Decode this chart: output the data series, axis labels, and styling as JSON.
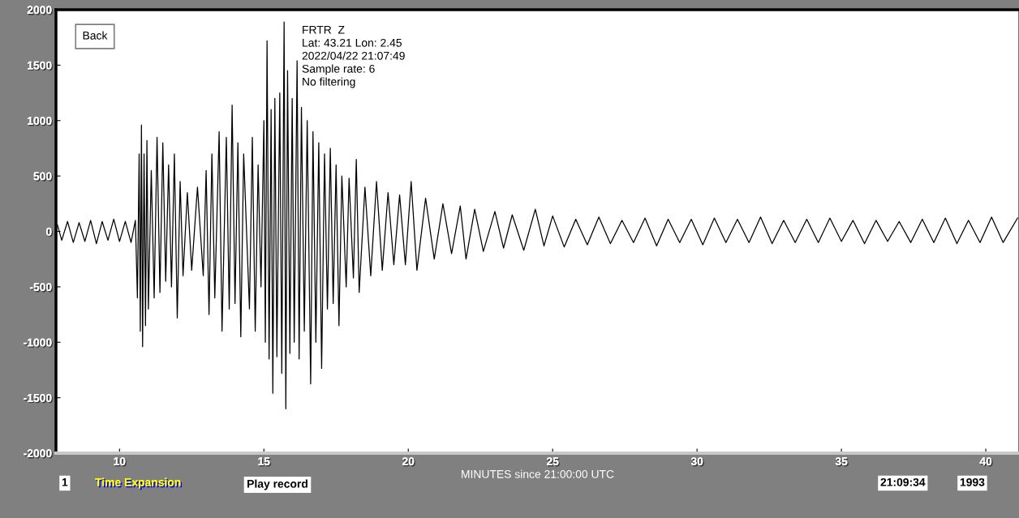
{
  "chart_data": {
    "type": "line",
    "xlabel": "MINUTES since 21:00:00 UTC",
    "annotations": [
      "FRTR  Z",
      "Lat: 43.21 Lon: 2.45",
      "2022/04/22 21:07:49",
      "Sample rate: 6",
      "No filtering",
      "Back",
      "1",
      "Time Expansion",
      "Play record",
      "21:09:34",
      "1993"
    ],
    "xlim": [
      7.8,
      41.15
    ],
    "ylim": [
      -2000,
      2000
    ],
    "xticks": [
      10,
      15,
      20,
      25,
      30,
      35,
      40
    ],
    "yticks": [
      -2000,
      -1500,
      -1000,
      -500,
      0,
      500,
      1000,
      1500,
      2000
    ],
    "grid": false,
    "marker": "none",
    "line_style": "solid",
    "series": [
      {
        "color": "#000000",
        "x": [
          7.85,
          8.0,
          8.2,
          8.4,
          8.6,
          8.8,
          9.0,
          9.2,
          9.4,
          9.6,
          9.8,
          10.0,
          10.2,
          10.4,
          10.55,
          10.62,
          10.68,
          10.72,
          10.76,
          10.8,
          10.85,
          10.9,
          10.95,
          11.0,
          11.1,
          11.2,
          11.3,
          11.4,
          11.5,
          11.6,
          11.7,
          11.8,
          11.9,
          12.0,
          12.1,
          12.2,
          12.35,
          12.5,
          12.7,
          12.9,
          13.0,
          13.1,
          13.2,
          13.3,
          13.45,
          13.55,
          13.7,
          13.8,
          13.9,
          14.0,
          14.1,
          14.2,
          14.3,
          14.5,
          14.6,
          14.7,
          14.8,
          14.9,
          15.0,
          15.05,
          15.11,
          15.18,
          15.25,
          15.31,
          15.38,
          15.45,
          15.55,
          15.62,
          15.7,
          15.76,
          15.82,
          15.9,
          15.98,
          16.05,
          16.15,
          16.22,
          16.3,
          16.4,
          16.5,
          16.62,
          16.7,
          16.8,
          16.9,
          17.0,
          17.1,
          17.2,
          17.3,
          17.4,
          17.5,
          17.6,
          17.7,
          17.85,
          17.95,
          18.1,
          18.2,
          18.3,
          18.5,
          18.7,
          18.9,
          19.1,
          19.3,
          19.5,
          19.7,
          19.9,
          20.1,
          20.3,
          20.6,
          20.9,
          21.2,
          21.5,
          21.8,
          22.0,
          22.3,
          22.6,
          23.0,
          23.3,
          23.6,
          24.0,
          24.4,
          24.7,
          25.0,
          25.4,
          25.8,
          26.2,
          26.6,
          27.0,
          27.4,
          27.8,
          28.2,
          28.6,
          29.0,
          29.4,
          29.8,
          30.2,
          30.6,
          31.0,
          31.4,
          31.8,
          32.2,
          32.6,
          33.0,
          33.4,
          33.8,
          34.2,
          34.6,
          35.0,
          35.4,
          35.8,
          36.2,
          36.6,
          37.0,
          37.4,
          37.8,
          38.2,
          38.6,
          39.0,
          39.4,
          39.8,
          40.2,
          40.6,
          41.1
        ],
        "values": [
          60,
          -80,
          90,
          -100,
          80,
          -90,
          100,
          -110,
          90,
          -80,
          110,
          -90,
          90,
          -100,
          100,
          -600,
          700,
          -900,
          960,
          -1040,
          700,
          -850,
          820,
          -700,
          550,
          -600,
          850,
          -550,
          800,
          -450,
          600,
          -500,
          700,
          -780,
          450,
          -400,
          350,
          -350,
          400,
          -400,
          550,
          -750,
          700,
          -600,
          900,
          -900,
          850,
          -700,
          1140,
          -650,
          800,
          -950,
          700,
          -700,
          850,
          -900,
          600,
          -500,
          1000,
          -1000,
          1720,
          -1150,
          1100,
          -1460,
          1200,
          -1130,
          1250,
          -1280,
          1890,
          -1600,
          1450,
          -1100,
          1200,
          -1000,
          1540,
          -1150,
          1120,
          -900,
          1000,
          -1375,
          900,
          -1000,
          800,
          -1235,
          700,
          -700,
          750,
          -650,
          600,
          -850,
          500,
          -500,
          480,
          -420,
          650,
          -550,
          400,
          -400,
          450,
          -350,
          350,
          -300,
          330,
          -300,
          450,
          -350,
          300,
          -250,
          250,
          -200,
          230,
          -250,
          200,
          -180,
          180,
          -150,
          150,
          -170,
          200,
          -130,
          140,
          -140,
          110,
          -120,
          130,
          -110,
          100,
          -100,
          120,
          -130,
          110,
          -100,
          110,
          -120,
          120,
          -100,
          110,
          -100,
          130,
          -110,
          100,
          -100,
          110,
          -100,
          120,
          -90,
          100,
          -110,
          100,
          -90,
          90,
          -100,
          110,
          -100,
          120,
          -110,
          100,
          -100,
          130,
          -100,
          120
        ]
      }
    ]
  }
}
